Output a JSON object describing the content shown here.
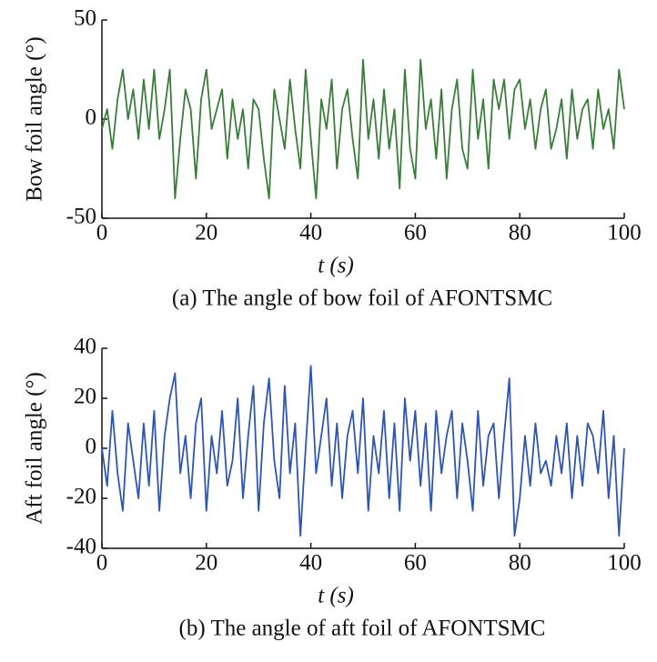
{
  "chart_data": [
    {
      "type": "line",
      "ylabel": "Bow foil angle (°)",
      "xlabel": "t (s)",
      "caption": "(a) The angle of bow foil of AFONTSMC",
      "xlim": [
        0,
        100
      ],
      "xticks": [
        0,
        20,
        40,
        60,
        80,
        100
      ],
      "ylim": [
        -50,
        50
      ],
      "yticks": [
        -50,
        0,
        50
      ],
      "x": [
        0,
        1,
        2,
        3,
        4,
        5,
        6,
        7,
        8,
        9,
        10,
        11,
        12,
        13,
        14,
        15,
        16,
        17,
        18,
        19,
        20,
        21,
        22,
        23,
        24,
        25,
        26,
        27,
        28,
        29,
        30,
        31,
        32,
        33,
        34,
        35,
        36,
        37,
        38,
        39,
        40,
        41,
        42,
        43,
        44,
        45,
        46,
        47,
        48,
        49,
        50,
        51,
        52,
        53,
        54,
        55,
        56,
        57,
        58,
        59,
        60,
        61,
        62,
        63,
        64,
        65,
        66,
        67,
        68,
        69,
        70,
        71,
        72,
        73,
        74,
        75,
        76,
        77,
        78,
        79,
        80,
        81,
        82,
        83,
        84,
        85,
        86,
        87,
        88,
        89,
        90,
        91,
        92,
        93,
        94,
        95,
        96,
        97,
        98,
        99,
        100
      ],
      "series": [
        {
          "color": "#3a7d3a",
          "values": [
            -5,
            5,
            -15,
            10,
            25,
            0,
            15,
            -10,
            20,
            -5,
            25,
            -10,
            5,
            25,
            -40,
            -10,
            15,
            5,
            -30,
            10,
            25,
            -5,
            5,
            15,
            -20,
            10,
            -10,
            5,
            -25,
            10,
            5,
            -20,
            -40,
            15,
            0,
            -15,
            20,
            -5,
            -25,
            25,
            -10,
            -40,
            10,
            -5,
            20,
            -25,
            5,
            15,
            -10,
            -30,
            30,
            -10,
            10,
            -20,
            15,
            -15,
            5,
            -35,
            25,
            -15,
            -30,
            30,
            -5,
            10,
            -20,
            15,
            -30,
            5,
            20,
            -15,
            -25,
            25,
            -10,
            10,
            -25,
            20,
            5,
            20,
            -10,
            15,
            20,
            -5,
            10,
            -15,
            5,
            15,
            -15,
            -5,
            10,
            -20,
            15,
            -10,
            5,
            10,
            -15,
            15,
            -5,
            5,
            -15,
            25,
            5
          ]
        }
      ]
    },
    {
      "type": "line",
      "ylabel": "Aft foil angle (°)",
      "xlabel": "t (s)",
      "caption": "(b) The angle of aft foil of AFONTSMC",
      "xlim": [
        0,
        100
      ],
      "xticks": [
        0,
        20,
        40,
        60,
        80,
        100
      ],
      "ylim": [
        -40,
        40
      ],
      "yticks": [
        -40,
        -20,
        0,
        20,
        40
      ],
      "x": [
        0,
        1,
        2,
        3,
        4,
        5,
        6,
        7,
        8,
        9,
        10,
        11,
        12,
        13,
        14,
        15,
        16,
        17,
        18,
        19,
        20,
        21,
        22,
        23,
        24,
        25,
        26,
        27,
        28,
        29,
        30,
        31,
        32,
        33,
        34,
        35,
        36,
        37,
        38,
        39,
        40,
        41,
        42,
        43,
        44,
        45,
        46,
        47,
        48,
        49,
        50,
        51,
        52,
        53,
        54,
        55,
        56,
        57,
        58,
        59,
        60,
        61,
        62,
        63,
        64,
        65,
        66,
        67,
        68,
        69,
        70,
        71,
        72,
        73,
        74,
        75,
        76,
        77,
        78,
        79,
        80,
        81,
        82,
        83,
        84,
        85,
        86,
        87,
        88,
        89,
        90,
        91,
        92,
        93,
        94,
        95,
        96,
        97,
        98,
        99,
        100
      ],
      "series": [
        {
          "color": "#2e55b0",
          "values": [
            0,
            -15,
            15,
            -10,
            -25,
            10,
            -5,
            -20,
            10,
            -15,
            15,
            -25,
            5,
            20,
            30,
            -10,
            5,
            -20,
            10,
            20,
            -25,
            5,
            -10,
            15,
            -15,
            -5,
            20,
            -20,
            5,
            25,
            -25,
            10,
            28,
            -5,
            -20,
            25,
            -10,
            10,
            -35,
            0,
            33,
            -10,
            5,
            20,
            -15,
            10,
            -20,
            5,
            15,
            -10,
            20,
            -25,
            5,
            -10,
            15,
            -20,
            10,
            -25,
            20,
            -5,
            15,
            -15,
            10,
            -25,
            15,
            -10,
            5,
            15,
            -20,
            10,
            -5,
            -25,
            15,
            -15,
            5,
            10,
            -20,
            5,
            28,
            -35,
            -20,
            5,
            -15,
            10,
            -10,
            -5,
            -15,
            5,
            -10,
            10,
            -20,
            5,
            -15,
            10,
            5,
            -10,
            15,
            -20,
            5,
            -35,
            0
          ]
        }
      ]
    }
  ]
}
